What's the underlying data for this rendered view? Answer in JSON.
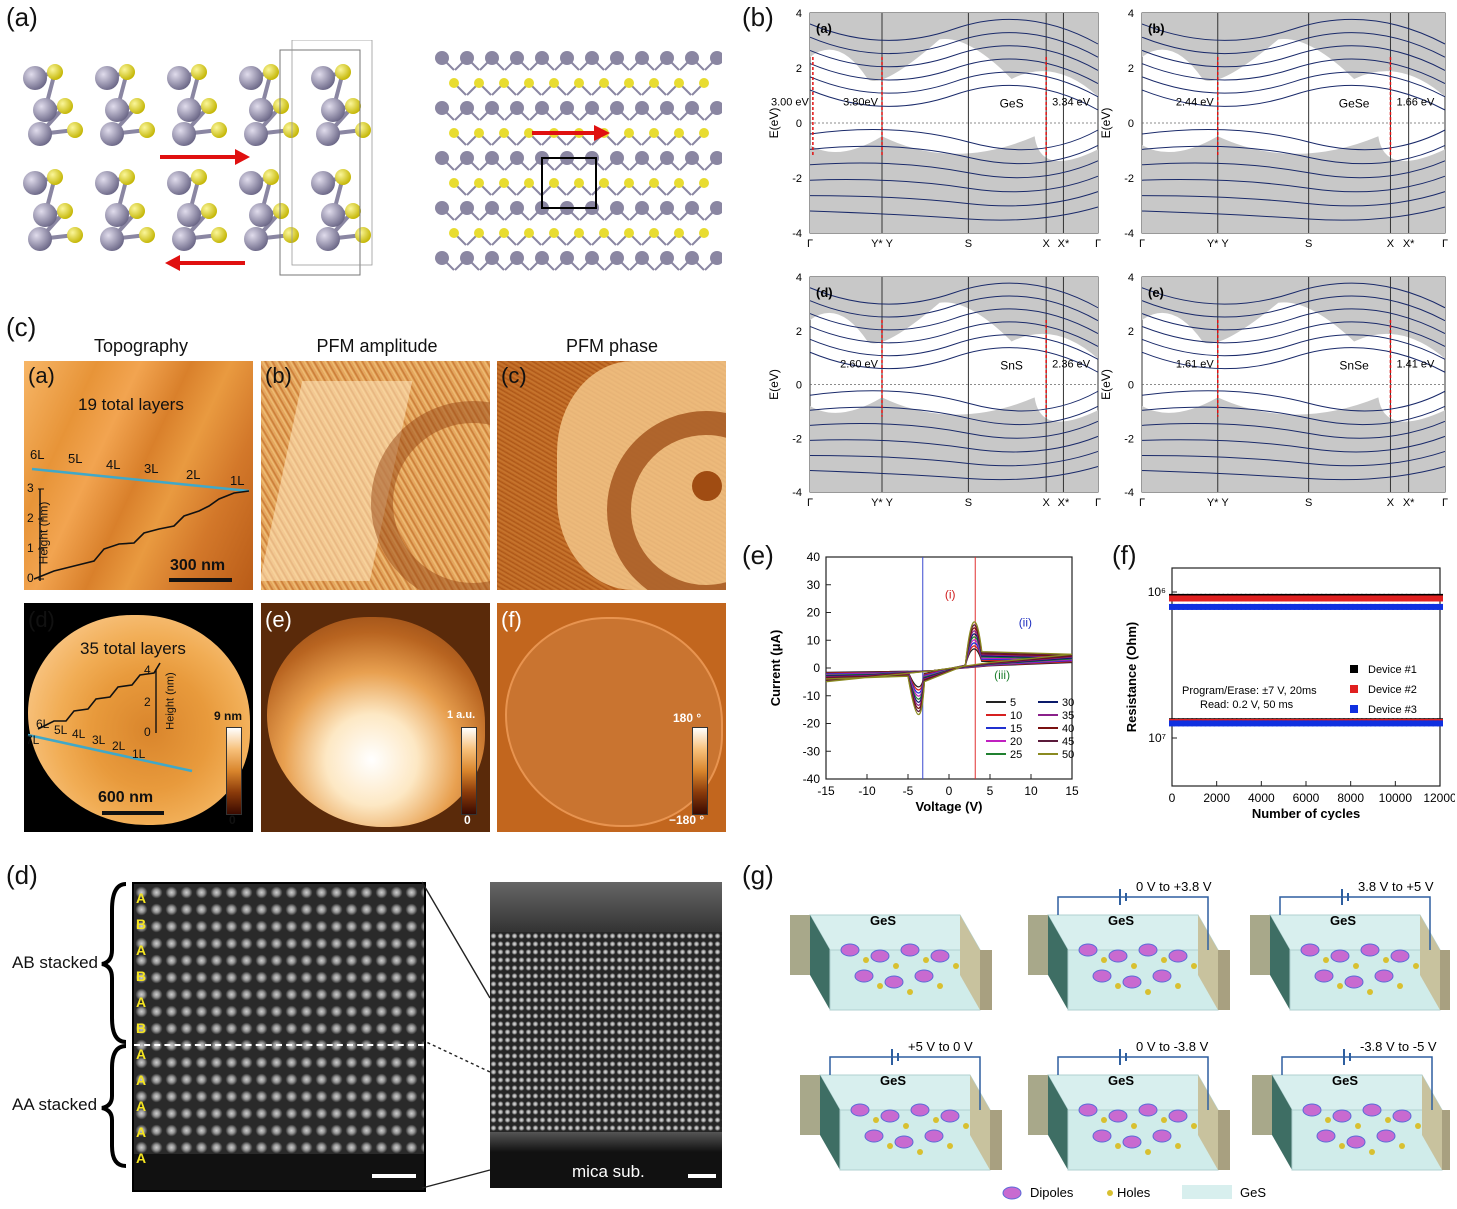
{
  "panels": {
    "a": {
      "label": "(a)"
    },
    "b": {
      "label": "(b)",
      "plots": [
        {
          "sub": "(a)",
          "material": "GeS",
          "gaps": [
            "3.00 eV",
            "3.80eV",
            "3.34 eV"
          ]
        },
        {
          "sub": "(b)",
          "material": "GeSe",
          "gaps": [
            "2.44 eV",
            "1.66 eV"
          ]
        },
        {
          "sub": "(d)",
          "material": "SnS",
          "gaps": [
            "2.60 eV",
            "2.36 eV"
          ]
        },
        {
          "sub": "(e)",
          "material": "SnSe",
          "gaps": [
            "1.61 eV",
            "1.41 eV"
          ]
        }
      ],
      "ylabel": "E(eV)",
      "yticks": [
        "4",
        "2",
        "0",
        "-2",
        "-4"
      ],
      "xticks": [
        "Γ",
        "Y* Y",
        "S",
        "X",
        "X*",
        "Γ"
      ]
    },
    "c": {
      "label": "(c)",
      "columns": [
        "Topography",
        "PFM amplitude",
        "PFM phase"
      ],
      "subs": [
        "(a)",
        "(b)",
        "(c)",
        "(d)",
        "(e)",
        "(f)"
      ],
      "top_layers": "19 total layers",
      "bottom_layers": "35 total layers",
      "layer_tags_top": [
        "6L",
        "5L",
        "4L",
        "3L",
        "2L",
        "1L"
      ],
      "layer_tags_bottom": [
        "6L",
        "5L",
        "4L",
        "3L",
        "2L",
        "1L",
        "7L"
      ],
      "scale_top": "300 nm",
      "scale_bottom": "600 nm",
      "height_label": "Height (nm)",
      "height_ticks_top": [
        "3",
        "2",
        "1",
        "0"
      ],
      "height_ticks_bottom": [
        "4",
        "2",
        "0"
      ],
      "colorbars": {
        "topo_max": "9 nm",
        "topo_min": "0",
        "amp_max": "1 a.u.",
        "amp_min": "0",
        "phase_max": "180 °",
        "phase_min": "−180 °"
      }
    },
    "d": {
      "label": "(d)",
      "ab": "AB stacked",
      "aa": "AA stacked",
      "layer_letters": [
        "A",
        "B",
        "A",
        "B",
        "A",
        "B",
        "A",
        "A",
        "A",
        "A",
        "A"
      ],
      "substrate": "mica sub."
    },
    "e": {
      "label": "(e)"
    },
    "f": {
      "label": "(f)"
    },
    "g": {
      "label": "(g)",
      "material": "GeS",
      "voltages": [
        "",
        "0 V to +3.8 V",
        "3.8 V to +5 V",
        "+5 V to 0 V",
        "0 V to -3.8 V",
        "-3.8 V to -5 V"
      ],
      "legend": [
        "Dipoles",
        "Holes",
        "GeS"
      ]
    }
  },
  "chart_data": [
    {
      "type": "line",
      "panel": "(e)",
      "xlabel": "Voltage (V)",
      "ylabel": "Current (μA)",
      "xlim": [
        -15,
        15
      ],
      "ylim": [
        -40,
        40
      ],
      "xticks": [
        -15,
        -10,
        -5,
        0,
        5,
        10,
        15
      ],
      "yticks": [
        -40,
        -30,
        -20,
        -10,
        0,
        10,
        20,
        30,
        40
      ],
      "annotations": [
        "(i)",
        "(ii)",
        "(iii)"
      ],
      "legend": [
        "5",
        "10",
        "15",
        "20",
        "25",
        "30",
        "35",
        "40",
        "45",
        "50"
      ],
      "series_colors": [
        "#222222",
        "#d62020",
        "#2030d0",
        "#c020c0",
        "#208030",
        "#0a1a6a",
        "#8a208a",
        "#7a1010",
        "#5a1a3a",
        "#8a8a20"
      ]
    },
    {
      "type": "scatter",
      "panel": "(f)",
      "xlabel": "Number of cycles",
      "ylabel": "Resistance (Ohm)",
      "xlim": [
        0,
        12000
      ],
      "xticks": [
        0,
        2000,
        4000,
        6000,
        8000,
        10000,
        12000
      ],
      "ytick_labels": [
        "10⁶",
        "10⁷"
      ],
      "note_1": "Program/Erase: ±7 V, 20ms",
      "note_2": "Read: 0.2 V, 50 ms",
      "series": [
        {
          "name": "Device #1",
          "color": "#000000",
          "low_state": 1350000.0,
          "high_state": 8000000.0
        },
        {
          "name": "Device #2",
          "color": "#e02020",
          "low_state": 1300000.0,
          "high_state": 8000000.0
        },
        {
          "name": "Device #3",
          "color": "#1030e0",
          "low_state": 1400000.0,
          "high_state": 8100000.0
        }
      ]
    }
  ]
}
